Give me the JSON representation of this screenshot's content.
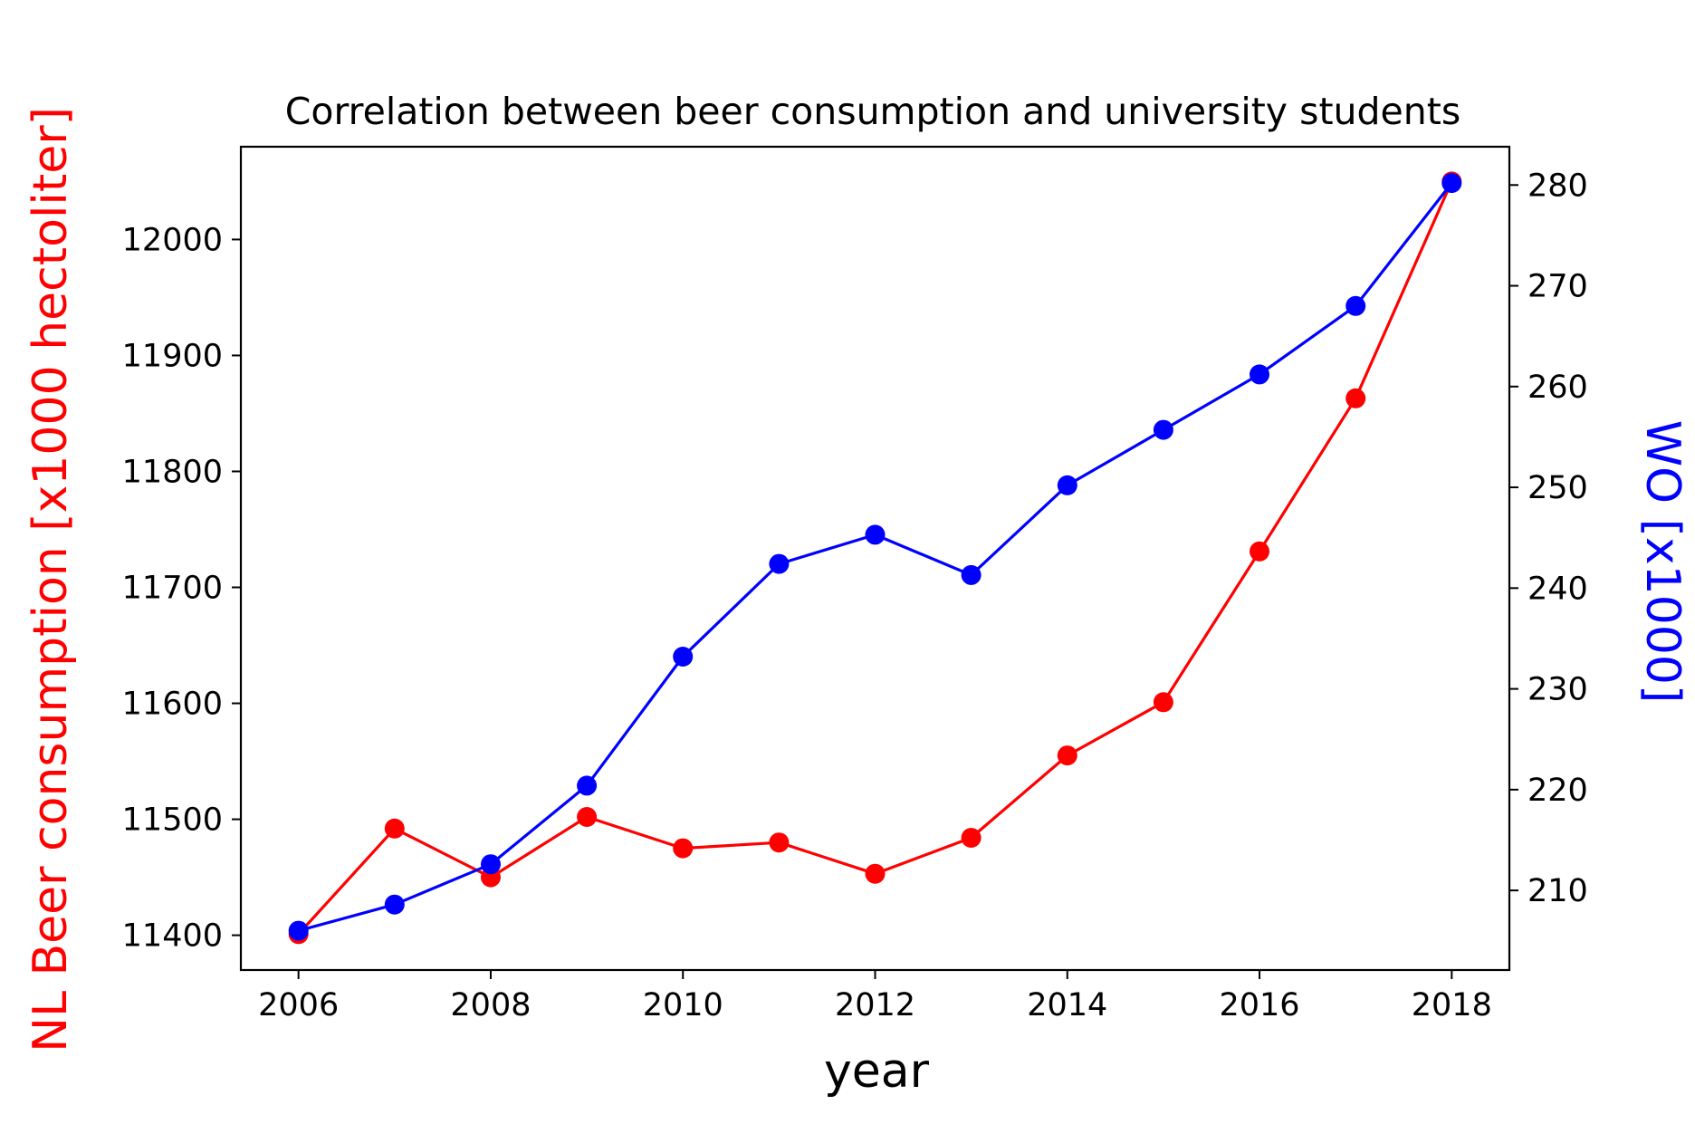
{
  "chart_data": {
    "type": "line",
    "title": "Correlation between beer consumption and university students",
    "xlabel": "year",
    "ylabel_left": "NL Beer consumption [x1000 hectoliter]",
    "ylabel_right": "WO [x1000]",
    "colors": {
      "left": "#ff0000",
      "right": "#0000ff",
      "axis": "#000000"
    },
    "x": [
      2006,
      2007,
      2008,
      2009,
      2010,
      2011,
      2012,
      2013,
      2014,
      2015,
      2016,
      2017,
      2018
    ],
    "xlim": [
      2005.4,
      2018.6
    ],
    "xticks": [
      2006,
      2008,
      2010,
      2012,
      2014,
      2016,
      2018
    ],
    "ylim_left": [
      11370,
      12080
    ],
    "yticks_left": [
      11400,
      11500,
      11600,
      11700,
      11800,
      11900,
      12000
    ],
    "ylim_right": [
      202.1,
      283.8
    ],
    "yticks_right": [
      210,
      220,
      230,
      240,
      250,
      260,
      270,
      280
    ],
    "series": [
      {
        "axis": "left",
        "color": "#ff0000",
        "values": [
          11401,
          11492,
          11450,
          11502,
          11475,
          11480,
          11453,
          11484,
          11555,
          11601,
          11731,
          11863,
          12050
        ]
      },
      {
        "axis": "right",
        "color": "#0000ff",
        "values": [
          206.0,
          208.6,
          212.6,
          220.4,
          233.2,
          242.4,
          245.3,
          241.3,
          250.2,
          255.7,
          261.2,
          268.0,
          280.2
        ]
      }
    ]
  }
}
